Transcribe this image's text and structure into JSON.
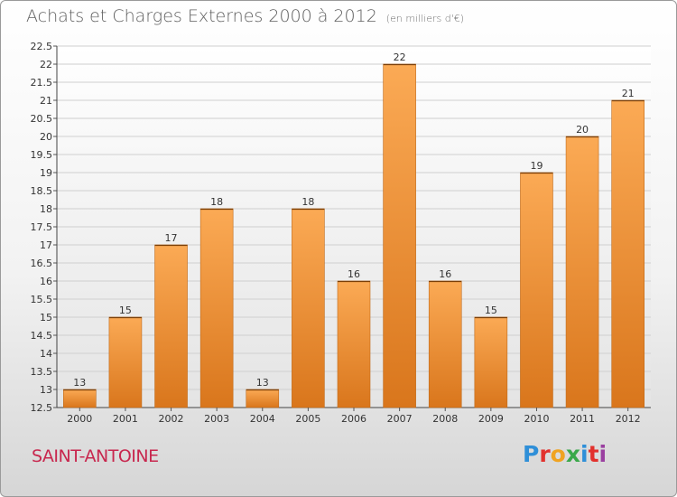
{
  "title": "Achats et Charges Externes 2000 à 2012",
  "unit": "(en milliers d'€)",
  "place": "SAINT-ANTOINE",
  "logo": {
    "text": "Proxiti",
    "colors": [
      "#2f8fd8",
      "#e2312d",
      "#f0a321",
      "#3aa84a",
      "#2f8fd8",
      "#e2312d",
      "#9a3fa0"
    ]
  },
  "colors": {
    "bar_light": "#fbaa55",
    "bar_dark": "#d9761c",
    "place": "#c8274e"
  },
  "chart_data": {
    "type": "bar",
    "title": "Achats et Charges Externes 2000 à 2012",
    "xlabel": "",
    "ylabel": "",
    "categories": [
      "2000",
      "2001",
      "2002",
      "2003",
      "2004",
      "2005",
      "2006",
      "2007",
      "2008",
      "2009",
      "2010",
      "2011",
      "2012"
    ],
    "values": [
      13,
      15,
      17,
      18,
      13,
      18,
      16,
      22,
      16,
      15,
      19,
      20,
      21
    ],
    "ylim": [
      12.5,
      22.5
    ],
    "yticks": [
      "12.5",
      "13",
      "13.5",
      "14",
      "14.5",
      "15",
      "15.5",
      "16",
      "16.5",
      "17",
      "17.5",
      "18",
      "18.5",
      "19",
      "19.5",
      "20",
      "20.5",
      "21",
      "21.5",
      "22",
      "22.5"
    ],
    "grid": true
  }
}
